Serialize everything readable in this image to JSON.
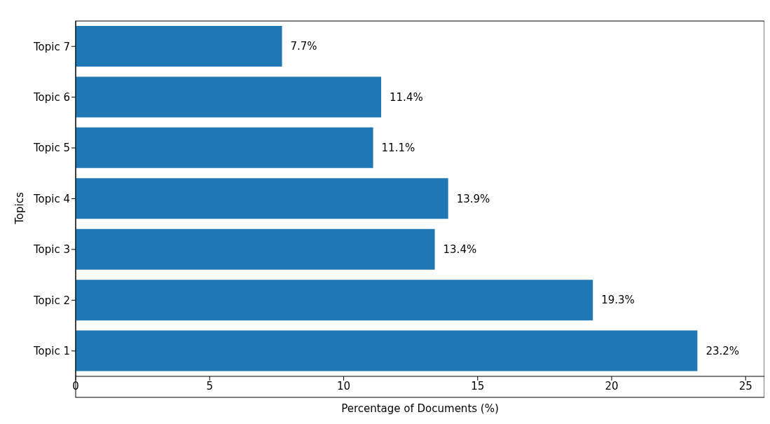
{
  "chart_data": {
    "type": "bar",
    "orientation": "horizontal",
    "xlabel": "Percentage of Documents (%)",
    "ylabel": "Topics",
    "categories": [
      "Topic 7",
      "Topic 6",
      "Topic 5",
      "Topic 4",
      "Topic 3",
      "Topic 2",
      "Topic 1"
    ],
    "values": [
      7.7,
      11.4,
      11.1,
      13.9,
      13.4,
      19.3,
      23.2
    ],
    "value_labels": [
      "7.7%",
      "11.4%",
      "11.1%",
      "13.9%",
      "13.4%",
      "19.3%",
      "23.2%"
    ],
    "color": "#1f77b4",
    "xlim": [
      0,
      25.7
    ],
    "xticks": [
      0,
      5,
      10,
      15,
      20,
      25
    ],
    "grid": false,
    "legend": false
  }
}
